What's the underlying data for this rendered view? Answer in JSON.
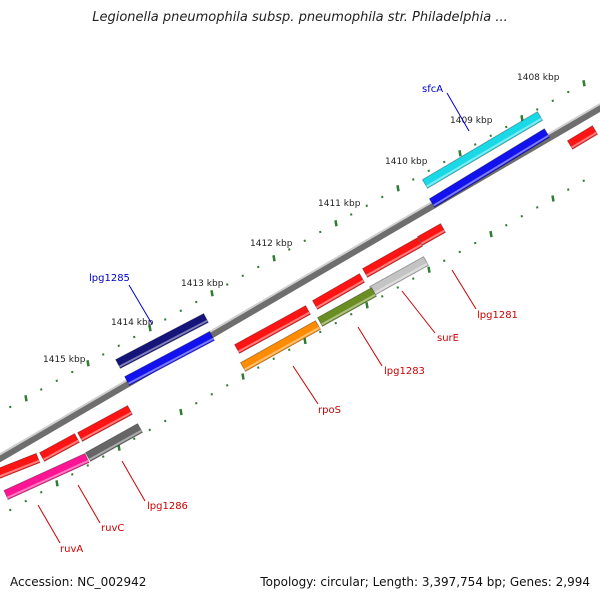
{
  "header": {
    "title": "Legionella pneumophila subsp. pneumophila str. Philadelphia ..."
  },
  "footer": {
    "accession": "Accession: NC_002942",
    "summary": "Topology: circular; Length: 3,397,754 bp; Genes: 2,994"
  },
  "colors": {
    "backbone": "#8a8a8a",
    "ticks": "#2e7d32",
    "gene_label": "#cc0000",
    "feature_label": "#0000cc"
  },
  "kbp_labels": [
    "1408 kbp",
    "1409 kbp",
    "1410 kbp",
    "1411 kbp",
    "1412 kbp",
    "1413 kbp",
    "1414 kbp",
    "1415 kbp"
  ],
  "gene_labels": [
    "lpg1281",
    "surE",
    "lpg1283",
    "rpoS",
    "lpg1286",
    "ruvC",
    "ruvA"
  ],
  "feature_labels": [
    "sfcA",
    "lpg1285"
  ]
}
